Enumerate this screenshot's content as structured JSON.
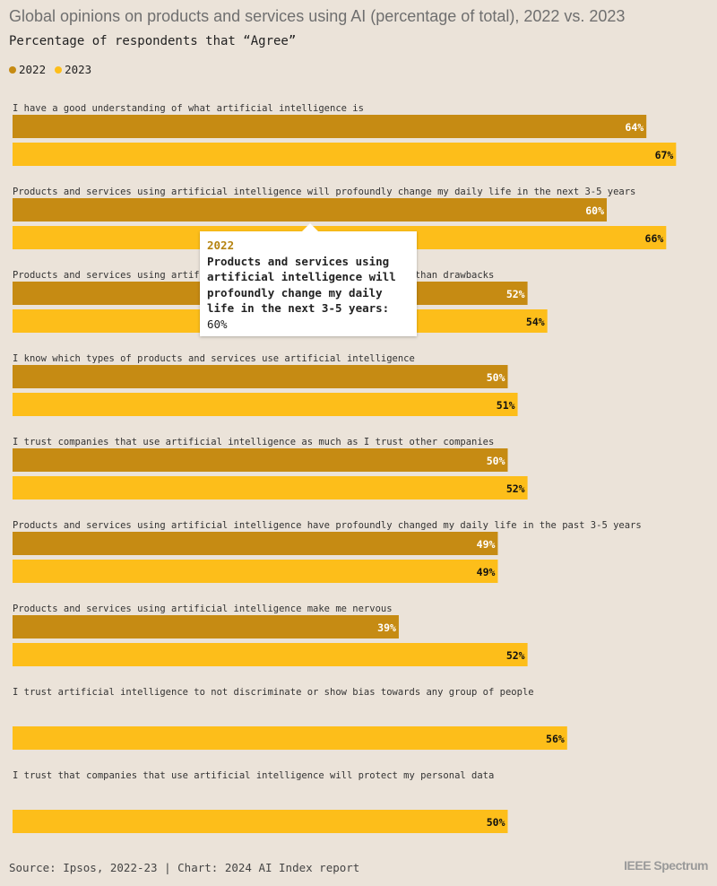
{
  "title": "Global opinions on products and services using AI (percentage of total), 2022 vs. 2023",
  "subtitle": "Percentage of respondents that “Agree”",
  "legend": [
    {
      "label": "2022",
      "color": "#c68b13"
    },
    {
      "label": "2023",
      "color": "#fdbe1a"
    }
  ],
  "chart_data": {
    "type": "bar",
    "orientation": "horizontal",
    "categories": [
      "I have a good understanding of what artificial intelligence is",
      "Products and services using artificial intelligence will profoundly change my daily life in the next 3-5 years",
      "Products and services using artificial intelligence have more benefits than drawbacks",
      "I know which types of products and services use artificial intelligence",
      "I trust companies that use artificial intelligence as much as I trust other companies",
      "Products and services using artificial intelligence have profoundly changed my daily life in the past 3-5 years",
      "Products and services using artificial intelligence make me nervous",
      "I trust artificial intelligence to not discriminate or show bias towards any group of people",
      "I trust that companies that use artificial intelligence will protect my personal data"
    ],
    "series": [
      {
        "name": "2022",
        "color": "#c68b13",
        "values": [
          64,
          60,
          52,
          50,
          50,
          49,
          39,
          null,
          null
        ]
      },
      {
        "name": "2023",
        "color": "#fdbe1a",
        "values": [
          67,
          66,
          54,
          51,
          52,
          49,
          52,
          56,
          50
        ]
      }
    ],
    "value_suffix": "%",
    "xlim": [
      0,
      70
    ],
    "grid": false,
    "legend_position": "top-left"
  },
  "tooltip": {
    "year": "2022",
    "text": "Products and services using artificial intelligence will profoundly change my daily life in the next 3-5 years:",
    "value": "60%"
  },
  "source": "Source: Ipsos, 2022-23 | Chart: 2024 AI Index report",
  "brand": "IEEE Spectrum"
}
